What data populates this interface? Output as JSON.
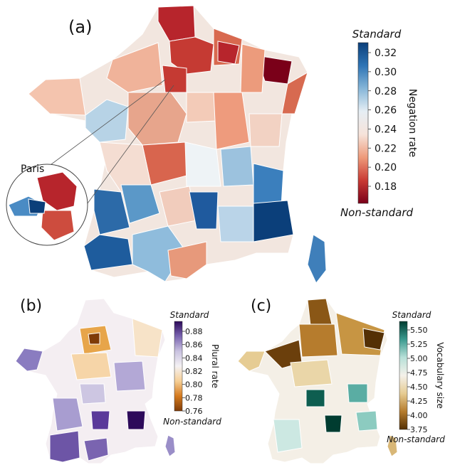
{
  "panels": [
    {
      "label": "(a)",
      "inset_label": "Paris",
      "colorbar": {
        "top_label": "Standard",
        "bottom_label": "Non-standard",
        "axis_label": "Negation rate",
        "ticks": [
          "0.32",
          "0.30",
          "0.28",
          "0.26",
          "0.24",
          "0.22",
          "0.20",
          "0.18"
        ],
        "stops": [
          "#0b3f7a",
          "#2e74b5",
          "#86b6d8",
          "#e6eef4",
          "#f6e3da",
          "#ee9a7a",
          "#c93a34",
          "#7a0019"
        ]
      }
    },
    {
      "label": "(b)",
      "colorbar": {
        "top_label": "Standard",
        "bottom_label": "Non-standard",
        "axis_label": "Plural rate",
        "ticks": [
          "0.88",
          "0.86",
          "0.84",
          "0.82",
          "0.80",
          "0.78",
          "0.76"
        ],
        "stops": [
          "#2d0a5a",
          "#7a64b0",
          "#c9c2e0",
          "#f4f1f3",
          "#f6cf96",
          "#d57a1e",
          "#7f3b08"
        ]
      }
    },
    {
      "label": "(c)",
      "colorbar": {
        "top_label": "Standard",
        "bottom_label": "Non-standard",
        "axis_label": "Vocabulary size",
        "ticks": [
          "5.50",
          "5.25",
          "5.00",
          "4.75",
          "4.50",
          "4.25",
          "4.00",
          "3.75"
        ],
        "stops": [
          "#003c30",
          "#3a9a8f",
          "#b7e0d8",
          "#f4f1ea",
          "#e6cc93",
          "#b67c2d",
          "#543005"
        ]
      }
    }
  ]
}
